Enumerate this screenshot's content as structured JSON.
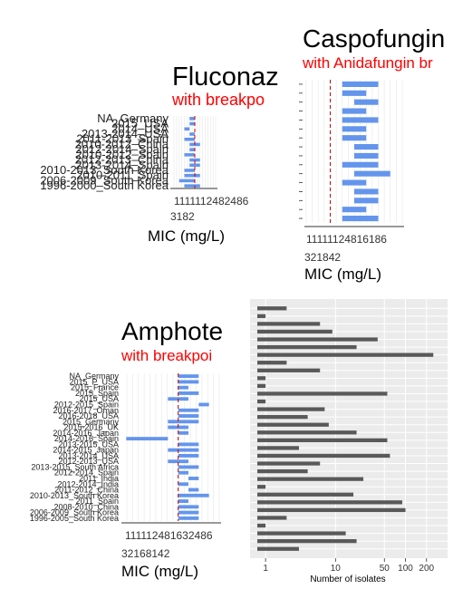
{
  "colors": {
    "bar": "#6495ed",
    "breakpoint": "#cc0000",
    "count_bar": "#595959",
    "title": "#000000",
    "subtitle": "#ff0000",
    "panel_bg": "#ebebeb",
    "grid": "#ffffff"
  },
  "chart_data": [
    {
      "id": "fluconazole",
      "type": "bar",
      "orientation": "horizontal-range",
      "title": "Fluconaz",
      "subtitle": "with breakpo",
      "xlabel": "MIC (mg/L)",
      "x_scale": "log2",
      "x_ticks_line1": "1111112482486",
      "x_ticks_line2": "3182",
      "y_labels_visible": [
        "NA_Germany",
        "2015_USA",
        "2014_USA",
        "2013-2014_USA",
        "2011-2013_Spain",
        "2010-2012_China",
        "2012-2014_Spain",
        "2010-2012_Spain",
        "2012-2013_China",
        "2013-2014_Spain",
        "2010-2013_South Korea",
        "2010-2011_Spain",
        "2006-2009_South Korea",
        "1996-2000_South Korea"
      ],
      "breakpoint": 1,
      "ranges": [
        [
          0.5,
          1
        ],
        [
          0.5,
          1
        ],
        [
          0.25,
          0.5
        ],
        [
          0.5,
          1
        ],
        [
          0.25,
          1
        ],
        [
          0.5,
          2
        ],
        [
          0.5,
          1
        ],
        [
          0.25,
          1
        ],
        [
          0.5,
          2
        ],
        [
          0.5,
          2
        ],
        [
          0.25,
          1
        ],
        [
          0.25,
          2
        ],
        [
          0.125,
          1
        ],
        [
          0.25,
          2
        ]
      ]
    },
    {
      "id": "caspofungin",
      "type": "bar",
      "orientation": "horizontal-range",
      "title": "Caspofungin",
      "subtitle": "with Anidafungin br",
      "xlabel": "MIC (mg/L)",
      "x_scale": "log2",
      "x_ticks_line1": "11111124816186",
      "x_ticks_line2": "321842",
      "breakpoint": 0.25,
      "ranges": [
        [
          0.5,
          4
        ],
        [
          0.5,
          2
        ],
        [
          1,
          4
        ],
        [
          0.5,
          2
        ],
        [
          0.5,
          4
        ],
        [
          0.5,
          2
        ],
        [
          0.5,
          2
        ],
        [
          1,
          4
        ],
        [
          1,
          4
        ],
        [
          0.5,
          4
        ],
        [
          1,
          8
        ],
        [
          0.5,
          2
        ],
        [
          1,
          4
        ],
        [
          1,
          4
        ],
        [
          0.5,
          2
        ],
        [
          0.5,
          4
        ]
      ]
    },
    {
      "id": "amphotericin",
      "type": "bar",
      "orientation": "horizontal-range",
      "title": "Amphote",
      "subtitle": "with breakpoi",
      "xlabel": "MIC (mg/L)",
      "x_scale": "log2",
      "x_ticks_line1": "111112481632486",
      "x_ticks_line2": "32168142",
      "y_labels_visible": [
        "NA_Germany",
        "2015_P_USA",
        "2015_France",
        "2015_Spain",
        "2015_USA",
        "2012-2015_Spain",
        "2016-2017_Oman",
        "2016-2018_USA",
        "2015_Germany",
        "2015-2016_UK",
        "2014-2016_Japan",
        "2014-2016_Spain",
        "2013-2015_USA",
        "2014-2015_Japan",
        "2013-2014_USA",
        "2012-2013_USA",
        "2013-2015_South Africa",
        "2012-2014_Spain",
        "2011_India",
        "2012-2014_India",
        "2011-2012_China",
        "2010-2013_South Korea",
        "2011_Spain",
        "2008-2010_China",
        "2006-2009_South Korea",
        "1996-2005_South Korea"
      ],
      "breakpoint": 1,
      "ranges": [
        [
          1,
          4
        ],
        [
          1,
          4
        ],
        [
          1,
          2
        ],
        [
          1,
          4
        ],
        [
          0.5,
          2
        ],
        [
          4,
          8
        ],
        [
          1,
          4
        ],
        [
          1,
          4
        ],
        [
          0.5,
          4
        ],
        [
          0.5,
          2
        ],
        [
          1,
          2
        ],
        [
          0.03,
          0.5
        ],
        [
          1,
          4
        ],
        [
          0.5,
          4
        ],
        [
          1,
          4
        ],
        [
          0.5,
          2
        ],
        [
          1,
          4
        ],
        [
          1,
          2
        ],
        [
          2,
          4
        ],
        [
          1,
          2
        ],
        [
          2,
          4
        ],
        [
          1,
          8
        ],
        [
          1,
          2
        ],
        [
          1,
          4
        ],
        [
          1,
          4
        ],
        [
          1,
          4
        ]
      ]
    },
    {
      "id": "isolates",
      "type": "bar",
      "orientation": "horizontal",
      "title": "",
      "xlabel": "Number of isolates",
      "x_scale": "log10",
      "x_ticks": [
        "1",
        "10",
        "50",
        "100",
        "200"
      ],
      "xlim": [
        0.6,
        400
      ],
      "values": [
        2,
        1,
        6,
        9,
        40,
        20,
        250,
        2,
        6,
        1,
        1,
        55,
        1,
        7,
        4,
        8,
        20,
        55,
        3,
        60,
        6,
        4,
        25,
        1,
        18,
        90,
        100,
        2,
        1,
        14,
        20,
        3
      ]
    }
  ]
}
